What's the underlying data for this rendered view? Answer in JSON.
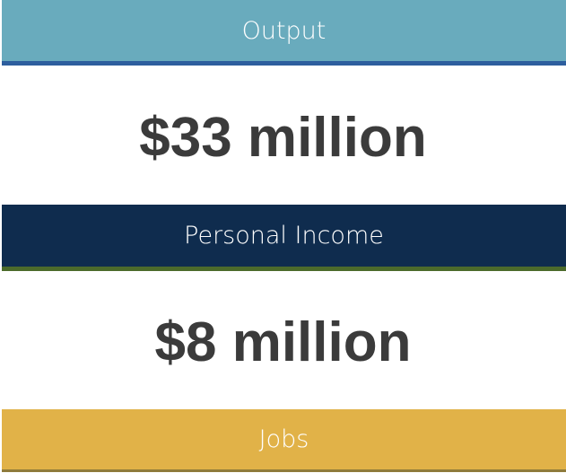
{
  "metrics": [
    {
      "label": "Output",
      "value": "$33 million"
    },
    {
      "label": "Personal Income",
      "value": "$8 million"
    },
    {
      "label": "Jobs"
    }
  ]
}
